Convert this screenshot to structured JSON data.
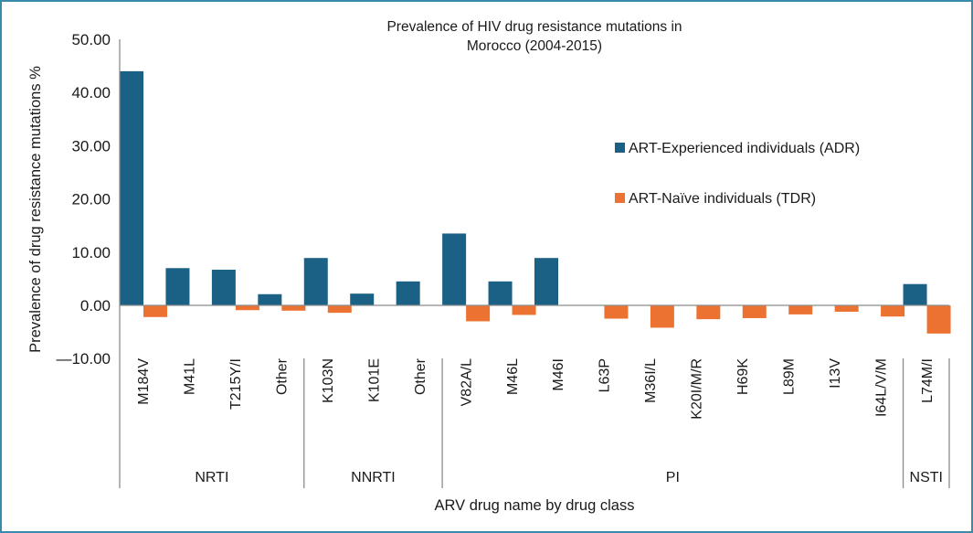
{
  "colors": {
    "frame_border": "#3a8aac",
    "adr": "#1b6185",
    "tdr": "#ec7232",
    "axis": "#8c8c8c"
  },
  "chart_data": {
    "type": "bar",
    "title_lines": [
      "Prevalence of HIV drug resistance mutations in",
      "Morocco (2004-2015)"
    ],
    "xlabel": "ARV drug name by drug class",
    "ylabel": "Prevalence of drug resistance mutations %",
    "ylim": [
      -10,
      50
    ],
    "yticks": [
      50,
      40,
      30,
      20,
      10,
      0,
      -10
    ],
    "ytick_labels": [
      "50.00",
      "40.00",
      "30.00",
      "20.00",
      "10.00",
      "0.00",
      "—10.00"
    ],
    "grid": false,
    "legend_position": "right-center",
    "categories": [
      "M184V",
      "M41L",
      "T215Y/I",
      "Other",
      "K103N",
      "K101E",
      "Other",
      "V82A/L",
      "M46L",
      "M46I",
      "L63P",
      "M36I/L",
      "K20I/M/R",
      "H69K",
      "L89M",
      "I13V",
      "I64L/V/M",
      "L74M/I"
    ],
    "groups": [
      {
        "name": "NRTI",
        "start": 0,
        "count": 4
      },
      {
        "name": "NNRTI",
        "start": 4,
        "count": 3
      },
      {
        "name": "PI",
        "start": 7,
        "count": 10
      },
      {
        "name": "NSTI",
        "start": 17,
        "count": 1
      }
    ],
    "series": [
      {
        "name": "ART-Experienced individuals (ADR)",
        "color_key": "adr",
        "values": [
          44.0,
          7.0,
          6.7,
          2.1,
          8.9,
          2.2,
          4.5,
          13.5,
          4.5,
          8.9,
          0,
          0,
          0,
          0,
          0,
          0,
          0,
          4.0
        ]
      },
      {
        "name": "ART-Naïve individuals (TDR)",
        "color_key": "tdr",
        "values": [
          -2.2,
          0,
          -0.9,
          -1.0,
          -1.4,
          0,
          0,
          -3.0,
          -1.8,
          0,
          -2.5,
          -4.2,
          -2.6,
          -2.4,
          -1.7,
          -1.2,
          -2.1,
          -5.3
        ]
      }
    ]
  }
}
